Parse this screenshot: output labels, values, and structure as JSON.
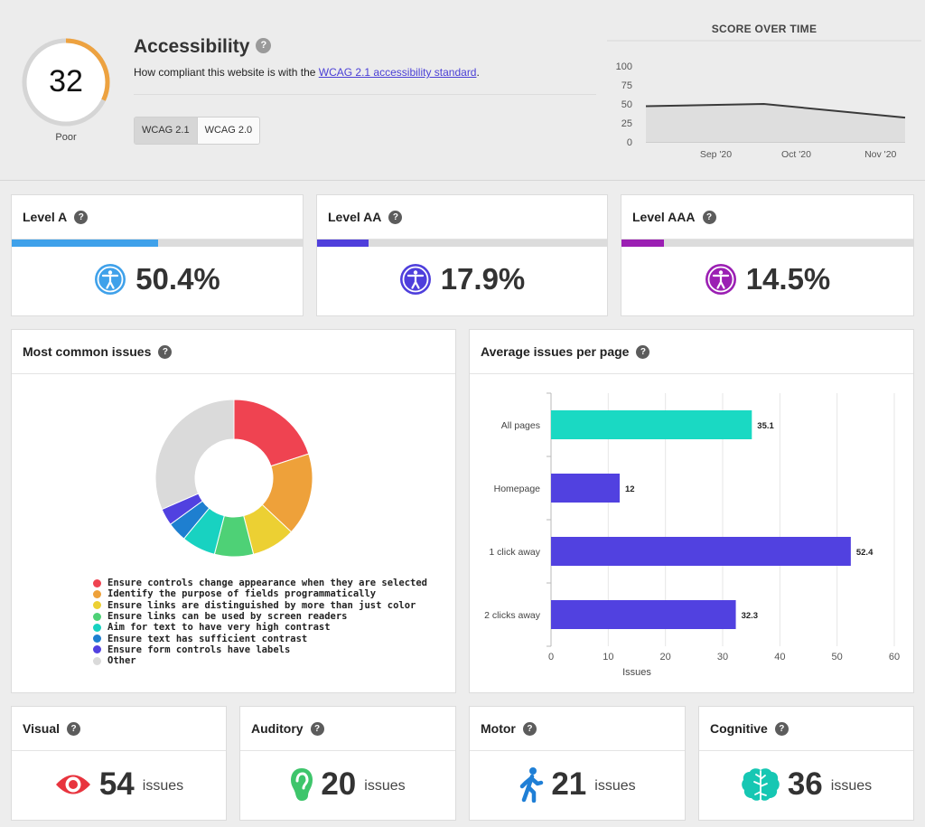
{
  "header": {
    "score": "32",
    "score_rating": "Poor",
    "score_fraction": 0.32,
    "title": "Accessibility",
    "description_prefix": "How compliant this website is with the ",
    "description_link": "WCAG 2.1 accessibility standard",
    "description_suffix": ".",
    "versions": [
      "WCAG 2.1",
      "WCAG 2.0"
    ],
    "active_version": "WCAG 2.1",
    "help": "?"
  },
  "score_over_time": {
    "chart_data": {
      "type": "area",
      "title": "SCORE OVER TIME",
      "y_ticks": [
        "100",
        "75",
        "50",
        "25",
        "0"
      ],
      "x_ticks": [
        "Sep '20",
        "Oct '20",
        "Nov '20"
      ],
      "ylim": [
        0,
        100
      ],
      "points": [
        {
          "x": "Aug '20",
          "y": 47
        },
        {
          "x": "Oct '20",
          "y": 50
        },
        {
          "x": "Nov '20",
          "y": 32
        }
      ],
      "grid": false,
      "colors": {
        "line": "#3a3a3a",
        "fill": "#dedede"
      }
    }
  },
  "levels": [
    {
      "name": "Level A",
      "value": "50.4%",
      "fraction": 0.504,
      "color": "#3fa1ea"
    },
    {
      "name": "Level AA",
      "value": "17.9%",
      "fraction": 0.179,
      "color": "#4f3fdc"
    },
    {
      "name": "Level AAA",
      "value": "14.5%",
      "fraction": 0.145,
      "color": "#9b1fb3"
    }
  ],
  "common_issues": {
    "title": "Most common issues",
    "chart_data": {
      "type": "pie",
      "donut": true,
      "slices": [
        {
          "label": "Ensure controls change appearance when they are selected",
          "value": 20,
          "color": "#ef4351"
        },
        {
          "label": "Identify the purpose of fields programmatically",
          "value": 17,
          "color": "#eea13a"
        },
        {
          "label": "Ensure links are distinguished by more than just color",
          "value": 9,
          "color": "#ecd033"
        },
        {
          "label": "Ensure links can be used by screen readers",
          "value": 8,
          "color": "#4ed176"
        },
        {
          "label": "Aim for text to have very high contrast",
          "value": 7,
          "color": "#18d2c1"
        },
        {
          "label": "Ensure text has sufficient contrast",
          "value": 4,
          "color": "#1e7fd0"
        },
        {
          "label": "Ensure form controls have labels",
          "value": 3.5,
          "color": "#5141e0"
        },
        {
          "label": "Other",
          "value": 31.5,
          "color": "#dadada"
        }
      ]
    }
  },
  "avg_issues": {
    "title": "Average issues per page",
    "chart_data": {
      "type": "bar",
      "orientation": "horizontal",
      "categories": [
        "All pages",
        "Homepage",
        "1 click away",
        "2 clicks away"
      ],
      "values": [
        35.1,
        12,
        52.4,
        32.3
      ],
      "value_labels": [
        "35.1",
        "12",
        "52.4",
        "32.3"
      ],
      "colors": [
        "#1ad9c3",
        "#5141e0",
        "#5141e0",
        "#5141e0"
      ],
      "x_ticks": [
        "0",
        "10",
        "20",
        "30",
        "40",
        "50",
        "60"
      ],
      "xlim": [
        0,
        60
      ],
      "xlabel": "Issues",
      "grid": true
    }
  },
  "categories": [
    {
      "name": "Visual",
      "count": "54",
      "unit": "issues",
      "icon": "eye-icon",
      "color": "#e8343e"
    },
    {
      "name": "Auditory",
      "count": "20",
      "unit": "issues",
      "icon": "ear-icon",
      "color": "#3ec56b"
    },
    {
      "name": "Motor",
      "count": "21",
      "unit": "issues",
      "icon": "walking-person-icon",
      "color": "#1f7fd6"
    },
    {
      "name": "Cognitive",
      "count": "36",
      "unit": "issues",
      "icon": "brain-icon",
      "color": "#16c7b3"
    }
  ]
}
